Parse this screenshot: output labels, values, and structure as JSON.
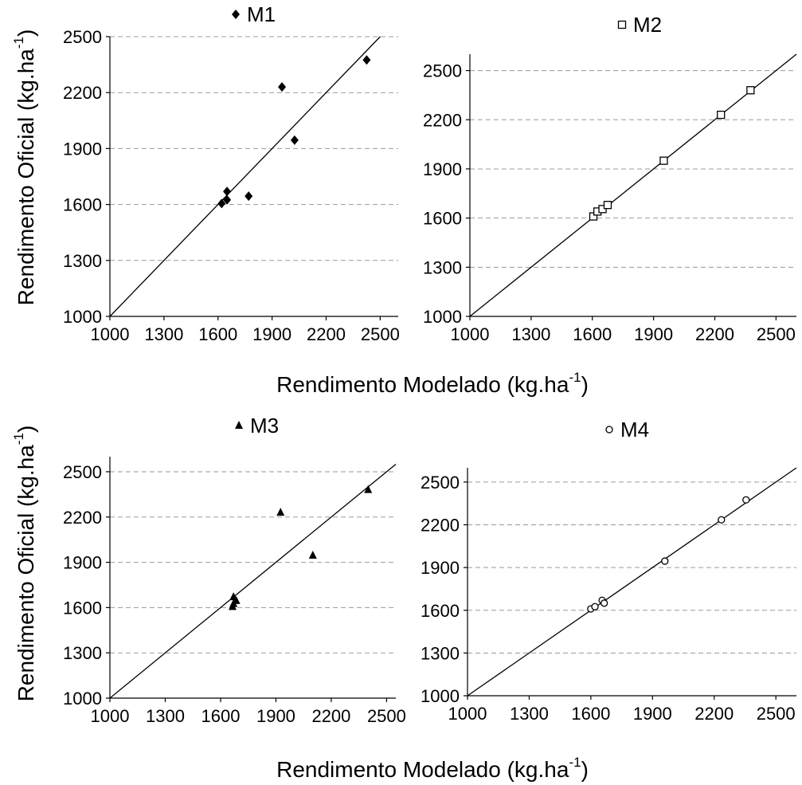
{
  "figure": {
    "xlabel": "Rendimento Modelado (kg.ha",
    "ylabel": "Rendimento Oficial (kg.ha",
    "unit_exponent": "-1"
  },
  "chart_data": [
    {
      "type": "scatter",
      "legend": "M1",
      "marker": "diamond-filled",
      "xlim": [
        1000,
        2600
      ],
      "ylim": [
        1000,
        2500
      ],
      "xticks": [
        1000,
        1300,
        1600,
        1900,
        2200,
        2500
      ],
      "yticks": [
        1000,
        1300,
        1600,
        1900,
        2200,
        2500
      ],
      "grid": "horizontal-dashed",
      "reference_line": "1:1",
      "points": [
        [
          1620,
          1605
        ],
        [
          1650,
          1625
        ],
        [
          1650,
          1670
        ],
        [
          1770,
          1645
        ],
        [
          1955,
          2230
        ],
        [
          2025,
          1945
        ],
        [
          2425,
          2375
        ]
      ]
    },
    {
      "type": "scatter",
      "legend": "M2",
      "marker": "square-open",
      "xlim": [
        1000,
        2600
      ],
      "ylim": [
        1000,
        2600
      ],
      "xticks": [
        1000,
        1300,
        1600,
        1900,
        2200,
        2500
      ],
      "yticks": [
        1000,
        1300,
        1600,
        1900,
        2200,
        2500
      ],
      "grid": "horizontal-dashed",
      "reference_line": "1:1",
      "points": [
        [
          1605,
          1610
        ],
        [
          1625,
          1640
        ],
        [
          1650,
          1655
        ],
        [
          1675,
          1680
        ],
        [
          1950,
          1950
        ],
        [
          2230,
          2230
        ],
        [
          2375,
          2380
        ]
      ]
    },
    {
      "type": "scatter",
      "legend": "M3",
      "marker": "triangle-filled",
      "xlim": [
        1000,
        2550
      ],
      "ylim": [
        1000,
        2600
      ],
      "xticks": [
        1000,
        1300,
        1600,
        1900,
        2200,
        2500
      ],
      "yticks": [
        1000,
        1300,
        1600,
        1900,
        2200,
        2500
      ],
      "grid": "horizontal-dashed",
      "reference_line": "1:1",
      "points": [
        [
          1665,
          1605
        ],
        [
          1670,
          1625
        ],
        [
          1670,
          1670
        ],
        [
          1685,
          1645
        ],
        [
          1925,
          2230
        ],
        [
          2100,
          1945
        ],
        [
          2400,
          2380
        ]
      ]
    },
    {
      "type": "scatter",
      "legend": "M4",
      "marker": "circle-open",
      "xlim": [
        1000,
        2600
      ],
      "ylim": [
        1000,
        2600
      ],
      "xticks": [
        1000,
        1300,
        1600,
        1900,
        2200,
        2500
      ],
      "yticks": [
        1000,
        1300,
        1600,
        1900,
        2200,
        2500
      ],
      "grid": "horizontal-dashed",
      "reference_line": "1:1",
      "points": [
        [
          1600,
          1610
        ],
        [
          1620,
          1625
        ],
        [
          1655,
          1670
        ],
        [
          1665,
          1650
        ],
        [
          1960,
          1945
        ],
        [
          2235,
          2235
        ],
        [
          2355,
          2375
        ]
      ]
    }
  ]
}
